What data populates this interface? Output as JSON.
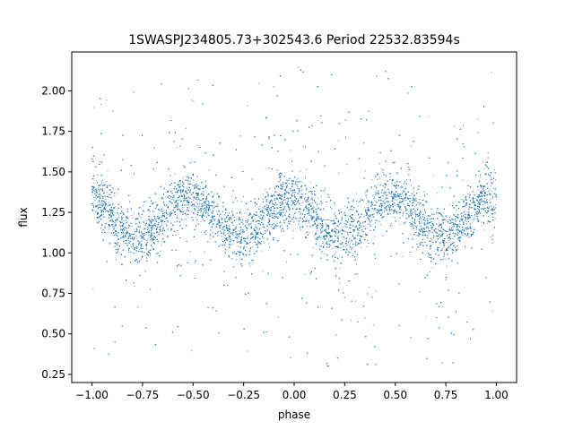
{
  "chart_data": {
    "type": "scatter",
    "title": "1SWASPJ234805.73+302543.6 Period 22532.83594s",
    "xlabel": "phase",
    "ylabel": "flux",
    "xlim": [
      -1.1,
      1.1
    ],
    "ylim": [
      0.2,
      2.24
    ],
    "x_ticks": [
      -1.0,
      -0.75,
      -0.5,
      -0.25,
      0.0,
      0.25,
      0.5,
      0.75,
      1.0
    ],
    "x_tick_labels": [
      "−1.00",
      "−0.75",
      "−0.50",
      "−0.25",
      "0.00",
      "0.25",
      "0.50",
      "0.75",
      "1.00"
    ],
    "y_ticks": [
      0.25,
      0.5,
      0.75,
      1.0,
      1.25,
      1.5,
      1.75,
      2.0
    ],
    "y_tick_labels": [
      "0.25",
      "0.50",
      "0.75",
      "1.00",
      "1.25",
      "1.50",
      "1.75",
      "2.00"
    ],
    "grid": false,
    "legend": "none",
    "marker_color": "#1f77b4",
    "series": [
      {
        "description_of_shape": "folded light curve: dense band oscillating twice per unit phase",
        "x_range": [
          -1.0,
          1.0
        ],
        "mean_level": 1.22,
        "amplitude": 0.12,
        "band_halfwidth": 0.15,
        "maxima_at_phase": [
          -1.0,
          -0.5,
          0.0,
          0.5,
          1.0
        ],
        "minima_at_phase": [
          -0.8,
          -0.25,
          0.2,
          0.75
        ],
        "outlier_range": [
          0.28,
          2.15
        ],
        "approx_point_count": 14000
      }
    ]
  }
}
